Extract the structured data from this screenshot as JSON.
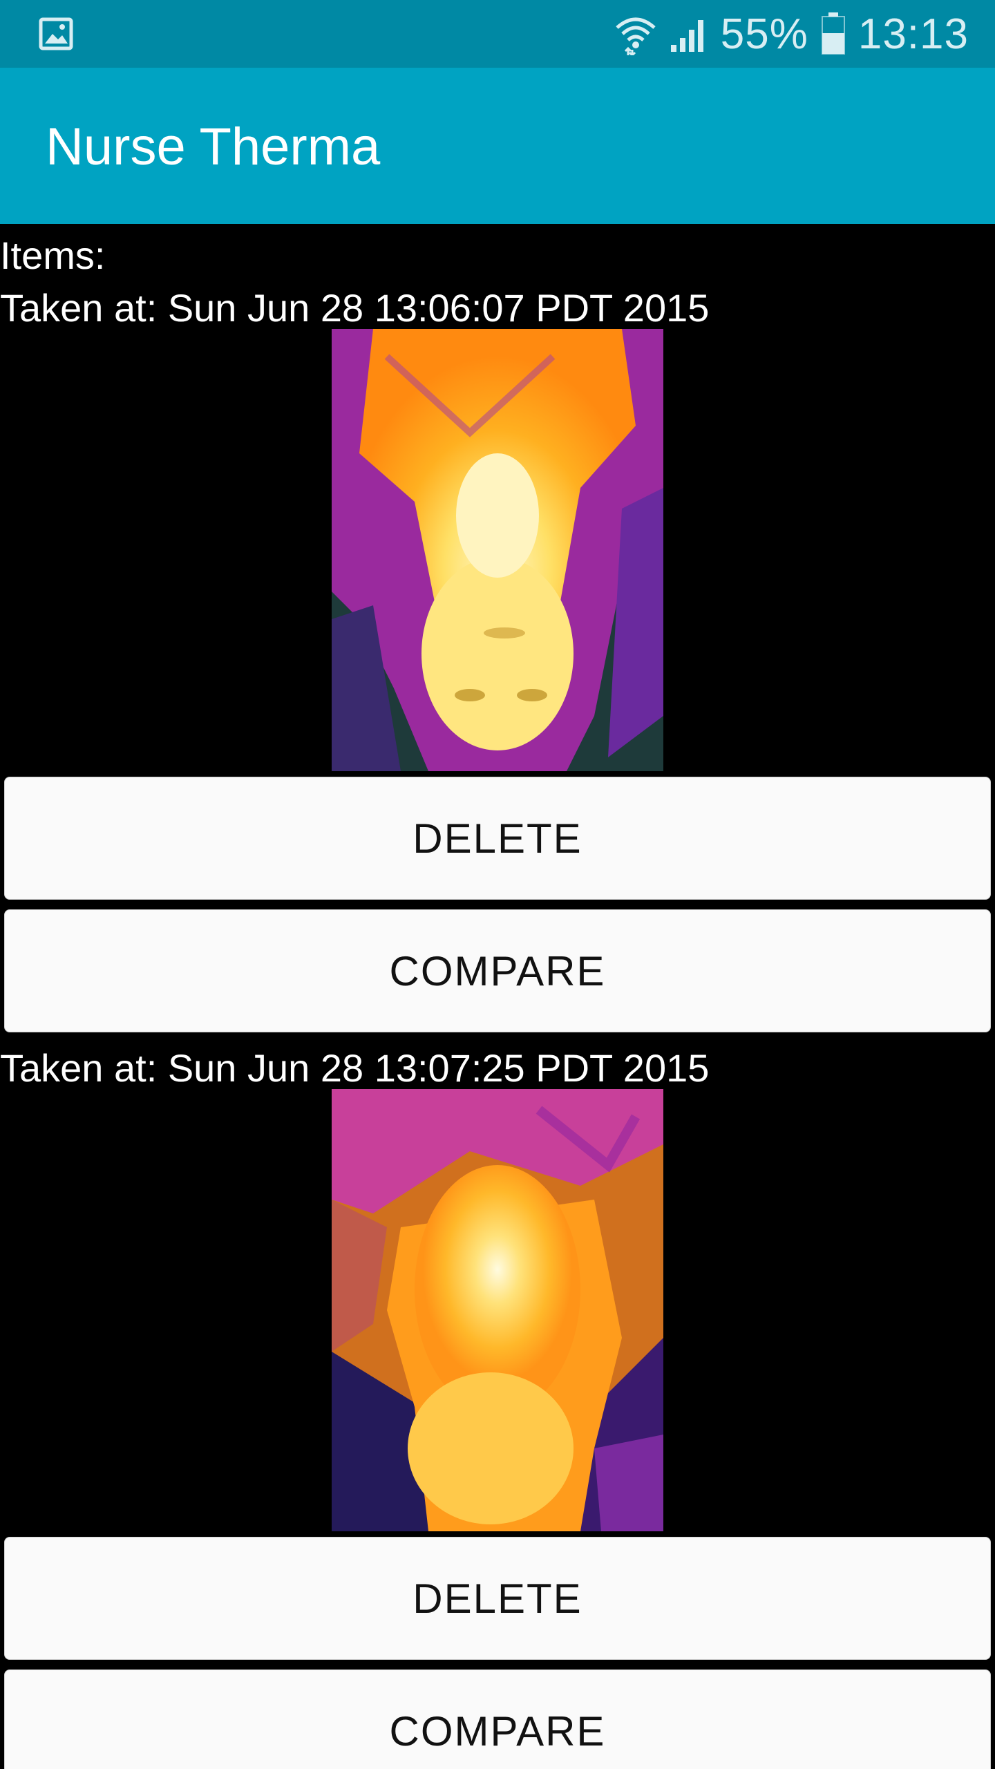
{
  "status_bar": {
    "battery": "55%",
    "time": "13:13",
    "icons": [
      "gallery-icon",
      "wifi-icon",
      "signal-icon",
      "battery-icon"
    ]
  },
  "app_bar": {
    "title": "Nurse Therma"
  },
  "content": {
    "items_label": "Items:",
    "entries": [
      {
        "taken_at": "Taken at: Sun Jun 28 13:06:07 PDT 2015",
        "delete_label": "DELETE",
        "compare_label": "COMPARE"
      },
      {
        "taken_at": "Taken at: Sun Jun 28 13:07:25 PDT 2015",
        "delete_label": "DELETE",
        "compare_label": "COMPARE"
      }
    ]
  },
  "colors": {
    "status_bar": "#0089a4",
    "app_bar": "#00a3c2",
    "background": "#000000",
    "button": "#fafafa"
  }
}
